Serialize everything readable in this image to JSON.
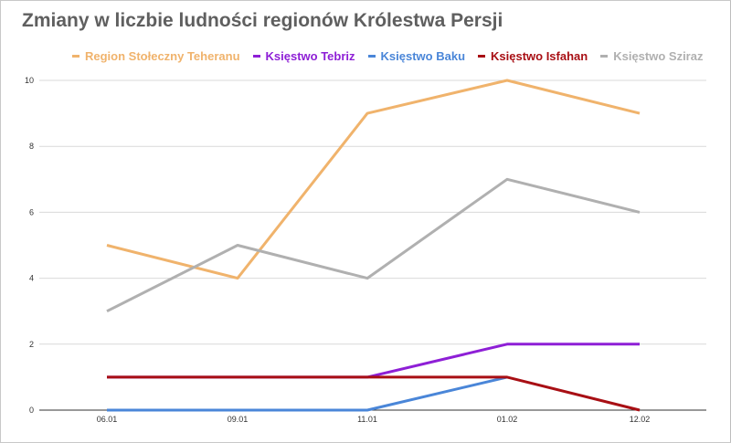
{
  "chart_data": {
    "type": "line",
    "title": "Zmiany w liczbie ludności regionów Królestwa Persji",
    "xlabel": "",
    "ylabel": "",
    "categories": [
      "06.01",
      "09.01",
      "11.01",
      "01.02",
      "12.02"
    ],
    "ylim": [
      0,
      10
    ],
    "yticks": [
      0,
      2,
      4,
      6,
      8,
      10
    ],
    "grid": true,
    "legend_position": "top",
    "series": [
      {
        "name": "Region Stołeczny Teheranu",
        "color": "#f0b36c",
        "values": [
          5,
          4,
          9,
          10,
          9
        ]
      },
      {
        "name": "Księstwo Tebriz",
        "color": "#8e1fd6",
        "values": [
          1,
          1,
          1,
          2,
          2
        ]
      },
      {
        "name": "Księstwo Baku",
        "color": "#4a86d8",
        "values": [
          0,
          0,
          0,
          1,
          null
        ]
      },
      {
        "name": "Księstwo Isfahan",
        "color": "#a80f14",
        "values": [
          1,
          1,
          1,
          1,
          0
        ]
      },
      {
        "name": "Księstwo Sziraz",
        "color": "#b0b0b0",
        "values": [
          3,
          5,
          4,
          7,
          6
        ]
      }
    ]
  }
}
